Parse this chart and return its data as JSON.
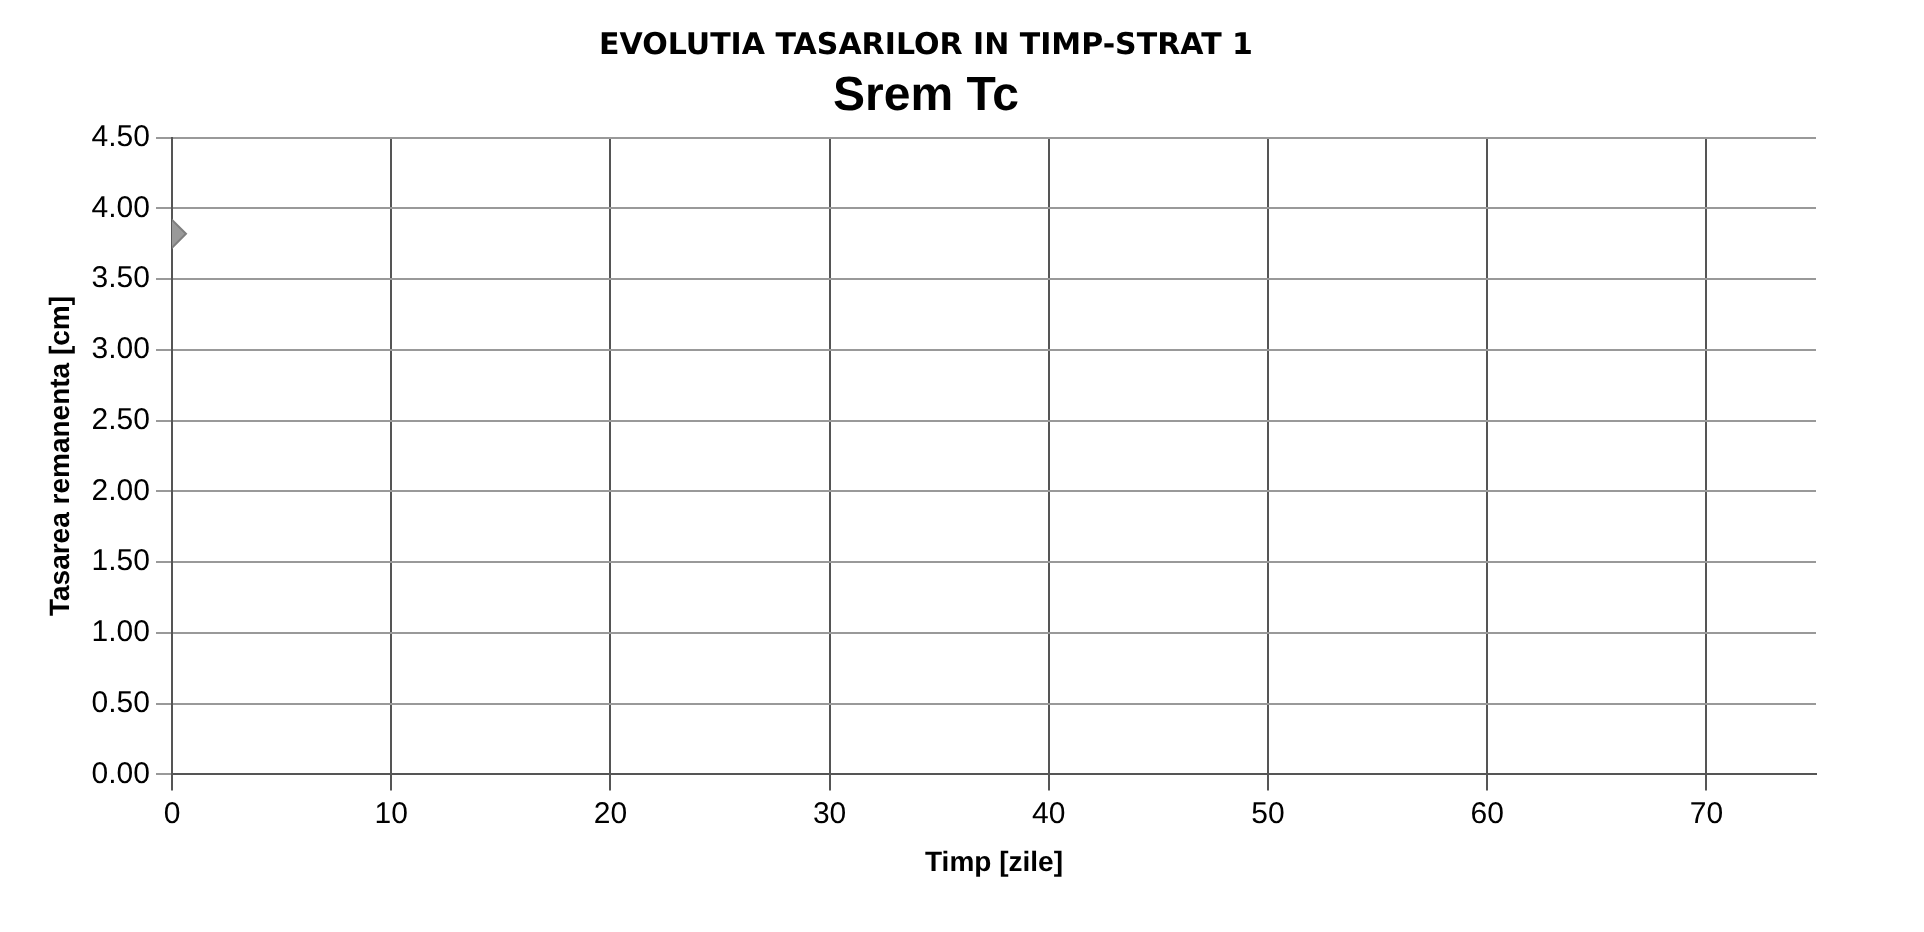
{
  "chart_data": {
    "type": "scatter",
    "title": "EVOLUTIA TASARILOR IN TIMP-STRAT 1",
    "subtitle": "Srem Tc",
    "xlabel": "Timp [zile]",
    "ylabel": "Tasarea remanenta [cm]",
    "x": [
      0
    ],
    "series": [
      {
        "color": "#999999",
        "values": [
          3.82
        ]
      }
    ],
    "xlim": [
      0,
      75
    ],
    "xticks": [
      0,
      10,
      20,
      30,
      40,
      50,
      60,
      70
    ],
    "ylim": [
      0,
      4.5
    ],
    "yticks": [
      {
        "value": 0,
        "label": "0.00"
      },
      {
        "value": 0.5,
        "label": "0.50"
      },
      {
        "value": 1,
        "label": "1.00"
      },
      {
        "value": 1.5,
        "label": "1.50"
      },
      {
        "value": 2,
        "label": "2.00"
      },
      {
        "value": 2.5,
        "label": "2.50"
      },
      {
        "value": 3,
        "label": "3.00"
      },
      {
        "value": 3.5,
        "label": "3.50"
      },
      {
        "value": 4,
        "label": "4.00"
      },
      {
        "value": 4.5,
        "label": "4.50"
      }
    ],
    "grid": true,
    "legend": false,
    "marker": "diamond"
  }
}
